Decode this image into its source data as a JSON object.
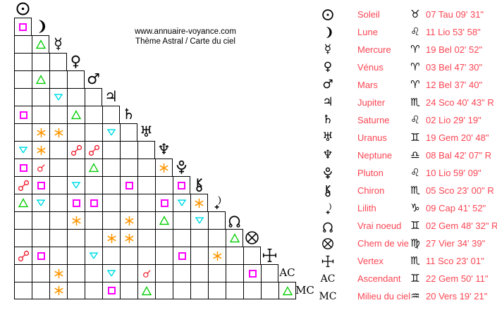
{
  "header": {
    "site": "www.annuaire-voyance.com",
    "subtitle": "Thème Astral / Carte du ciel"
  },
  "colors": {
    "square": "#ff00ff",
    "trine": "#00cd00",
    "sextile": "#ff9600",
    "quincunx": "#00dde8",
    "opposition": "#ee1020",
    "conjunction": "#ee1020",
    "table_text": "#fb4553",
    "glyphs": "#000000"
  },
  "grid": {
    "planets": [
      {
        "id": "sun",
        "icon": "sun-icon"
      },
      {
        "id": "moon",
        "icon": "moon-icon"
      },
      {
        "id": "mercury",
        "icon": "mercury-icon"
      },
      {
        "id": "venus",
        "icon": "venus-icon"
      },
      {
        "id": "mars",
        "icon": "mars-icon"
      },
      {
        "id": "jupiter",
        "icon": "jupiter-icon"
      },
      {
        "id": "saturn",
        "icon": "saturn-icon"
      },
      {
        "id": "uranus",
        "icon": "uranus-icon"
      },
      {
        "id": "neptune",
        "icon": "neptune-icon"
      },
      {
        "id": "pluto",
        "icon": "pluto-icon"
      },
      {
        "id": "chiron",
        "icon": "chiron-icon"
      },
      {
        "id": "lilith",
        "icon": "lilith-icon"
      },
      {
        "id": "true-node",
        "icon": "node-icon"
      },
      {
        "id": "part-of-fortune",
        "icon": "wheel-of-fortune-icon"
      },
      {
        "id": "vertex",
        "icon": "vertex-icon"
      },
      {
        "id": "ascendant",
        "label": "AC"
      },
      {
        "id": "midheaven",
        "label": "MC"
      }
    ],
    "aspects": [
      [
        1,
        0,
        "square"
      ],
      [
        2,
        1,
        "trine"
      ],
      [
        4,
        1,
        "trine"
      ],
      [
        5,
        2,
        "quincunx"
      ],
      [
        6,
        0,
        "square"
      ],
      [
        6,
        3,
        "trine"
      ],
      [
        7,
        1,
        "sextile"
      ],
      [
        7,
        2,
        "sextile"
      ],
      [
        7,
        5,
        "quincunx"
      ],
      [
        8,
        0,
        "quincunx"
      ],
      [
        8,
        1,
        "sextile"
      ],
      [
        8,
        3,
        "opposition"
      ],
      [
        8,
        4,
        "opposition"
      ],
      [
        9,
        0,
        "square"
      ],
      [
        9,
        1,
        "conjunction"
      ],
      [
        9,
        4,
        "trine"
      ],
      [
        9,
        8,
        "sextile"
      ],
      [
        10,
        0,
        "opposition"
      ],
      [
        10,
        1,
        "square"
      ],
      [
        10,
        3,
        "quincunx"
      ],
      [
        10,
        6,
        "square"
      ],
      [
        10,
        9,
        "square"
      ],
      [
        11,
        0,
        "trine"
      ],
      [
        11,
        1,
        "quincunx"
      ],
      [
        11,
        3,
        "square"
      ],
      [
        11,
        4,
        "square"
      ],
      [
        11,
        8,
        "square"
      ],
      [
        11,
        9,
        "quincunx"
      ],
      [
        11,
        10,
        "sextile"
      ],
      [
        12,
        3,
        "sextile"
      ],
      [
        12,
        6,
        "sextile"
      ],
      [
        12,
        8,
        "trine"
      ],
      [
        12,
        10,
        "quincunx"
      ],
      [
        13,
        5,
        "sextile"
      ],
      [
        13,
        6,
        "sextile"
      ],
      [
        13,
        12,
        "trine"
      ],
      [
        14,
        0,
        "opposition"
      ],
      [
        14,
        1,
        "square"
      ],
      [
        14,
        4,
        "quincunx"
      ],
      [
        14,
        9,
        "square"
      ],
      [
        14,
        11,
        "sextile"
      ],
      [
        15,
        2,
        "sextile"
      ],
      [
        15,
        5,
        "quincunx"
      ],
      [
        15,
        7,
        "conjunction"
      ],
      [
        15,
        13,
        "square"
      ],
      [
        16,
        2,
        "sextile"
      ],
      [
        16,
        5,
        "square"
      ],
      [
        16,
        7,
        "trine"
      ],
      [
        16,
        15,
        "trine"
      ]
    ]
  },
  "table": {
    "rows": [
      {
        "icon": "sun-icon",
        "name": "Soleil",
        "sign_icon": "taurus-icon",
        "position": "07 Tau 09' 31\""
      },
      {
        "icon": "moon-icon",
        "name": "Lune",
        "sign_icon": "leo-icon",
        "position": "11 Lio 53' 58\""
      },
      {
        "icon": "mercury-icon",
        "name": "Mercure",
        "sign_icon": "aries-icon",
        "position": "19 Bel 02' 52\""
      },
      {
        "icon": "venus-icon",
        "name": "Vénus",
        "sign_icon": "aries-icon",
        "position": "03 Bel 47' 30\""
      },
      {
        "icon": "mars-icon",
        "name": "Mars",
        "sign_icon": "aries-icon",
        "position": "12 Bel 37' 40\""
      },
      {
        "icon": "jupiter-icon",
        "name": "Jupiter",
        "sign_icon": "scorpio-icon",
        "position": "24 Sco 40' 43\" R"
      },
      {
        "icon": "saturn-icon",
        "name": "Saturne",
        "sign_icon": "leo-icon",
        "position": "02 Lio 29' 19\""
      },
      {
        "icon": "uranus-icon",
        "name": "Uranus",
        "sign_icon": "gemini-icon",
        "position": "19 Gem 20' 48\""
      },
      {
        "icon": "neptune-icon",
        "name": "Neptune",
        "sign_icon": "libra-icon",
        "position": "08 Bal 42' 07\" R"
      },
      {
        "icon": "pluto-icon",
        "name": "Pluton",
        "sign_icon": "leo-icon",
        "position": "10 Lio 59' 09\""
      },
      {
        "icon": "chiron-icon",
        "name": "Chiron",
        "sign_icon": "scorpio-icon",
        "position": "05 Sco 23' 00\" R"
      },
      {
        "icon": "lilith-icon",
        "name": "Lilith",
        "sign_icon": "capricorn-icon",
        "position": "09 Cap 41' 52\""
      },
      {
        "icon": "node-icon",
        "name": "Vrai noeud",
        "sign_icon": "gemini-icon",
        "position": "02 Gem 48' 32\" R"
      },
      {
        "icon": "wheel-of-fortune-icon",
        "name": "Chem de vie",
        "sign_icon": "virgo-icon",
        "position": "27 Vier 34' 39\""
      },
      {
        "icon": "vertex-icon",
        "name": "Vertex",
        "sign_icon": "scorpio-icon",
        "position": "11 Sco 23' 01\""
      },
      {
        "icon": "ac-label",
        "name": "Ascendant",
        "sign_icon": "gemini-icon",
        "position": "22 Gem 50' 11\""
      },
      {
        "icon": "mc-label",
        "name": "Milieu du ciel",
        "sign_icon": "aquarius-icon",
        "position": "20 Vers 19' 21\""
      }
    ]
  }
}
